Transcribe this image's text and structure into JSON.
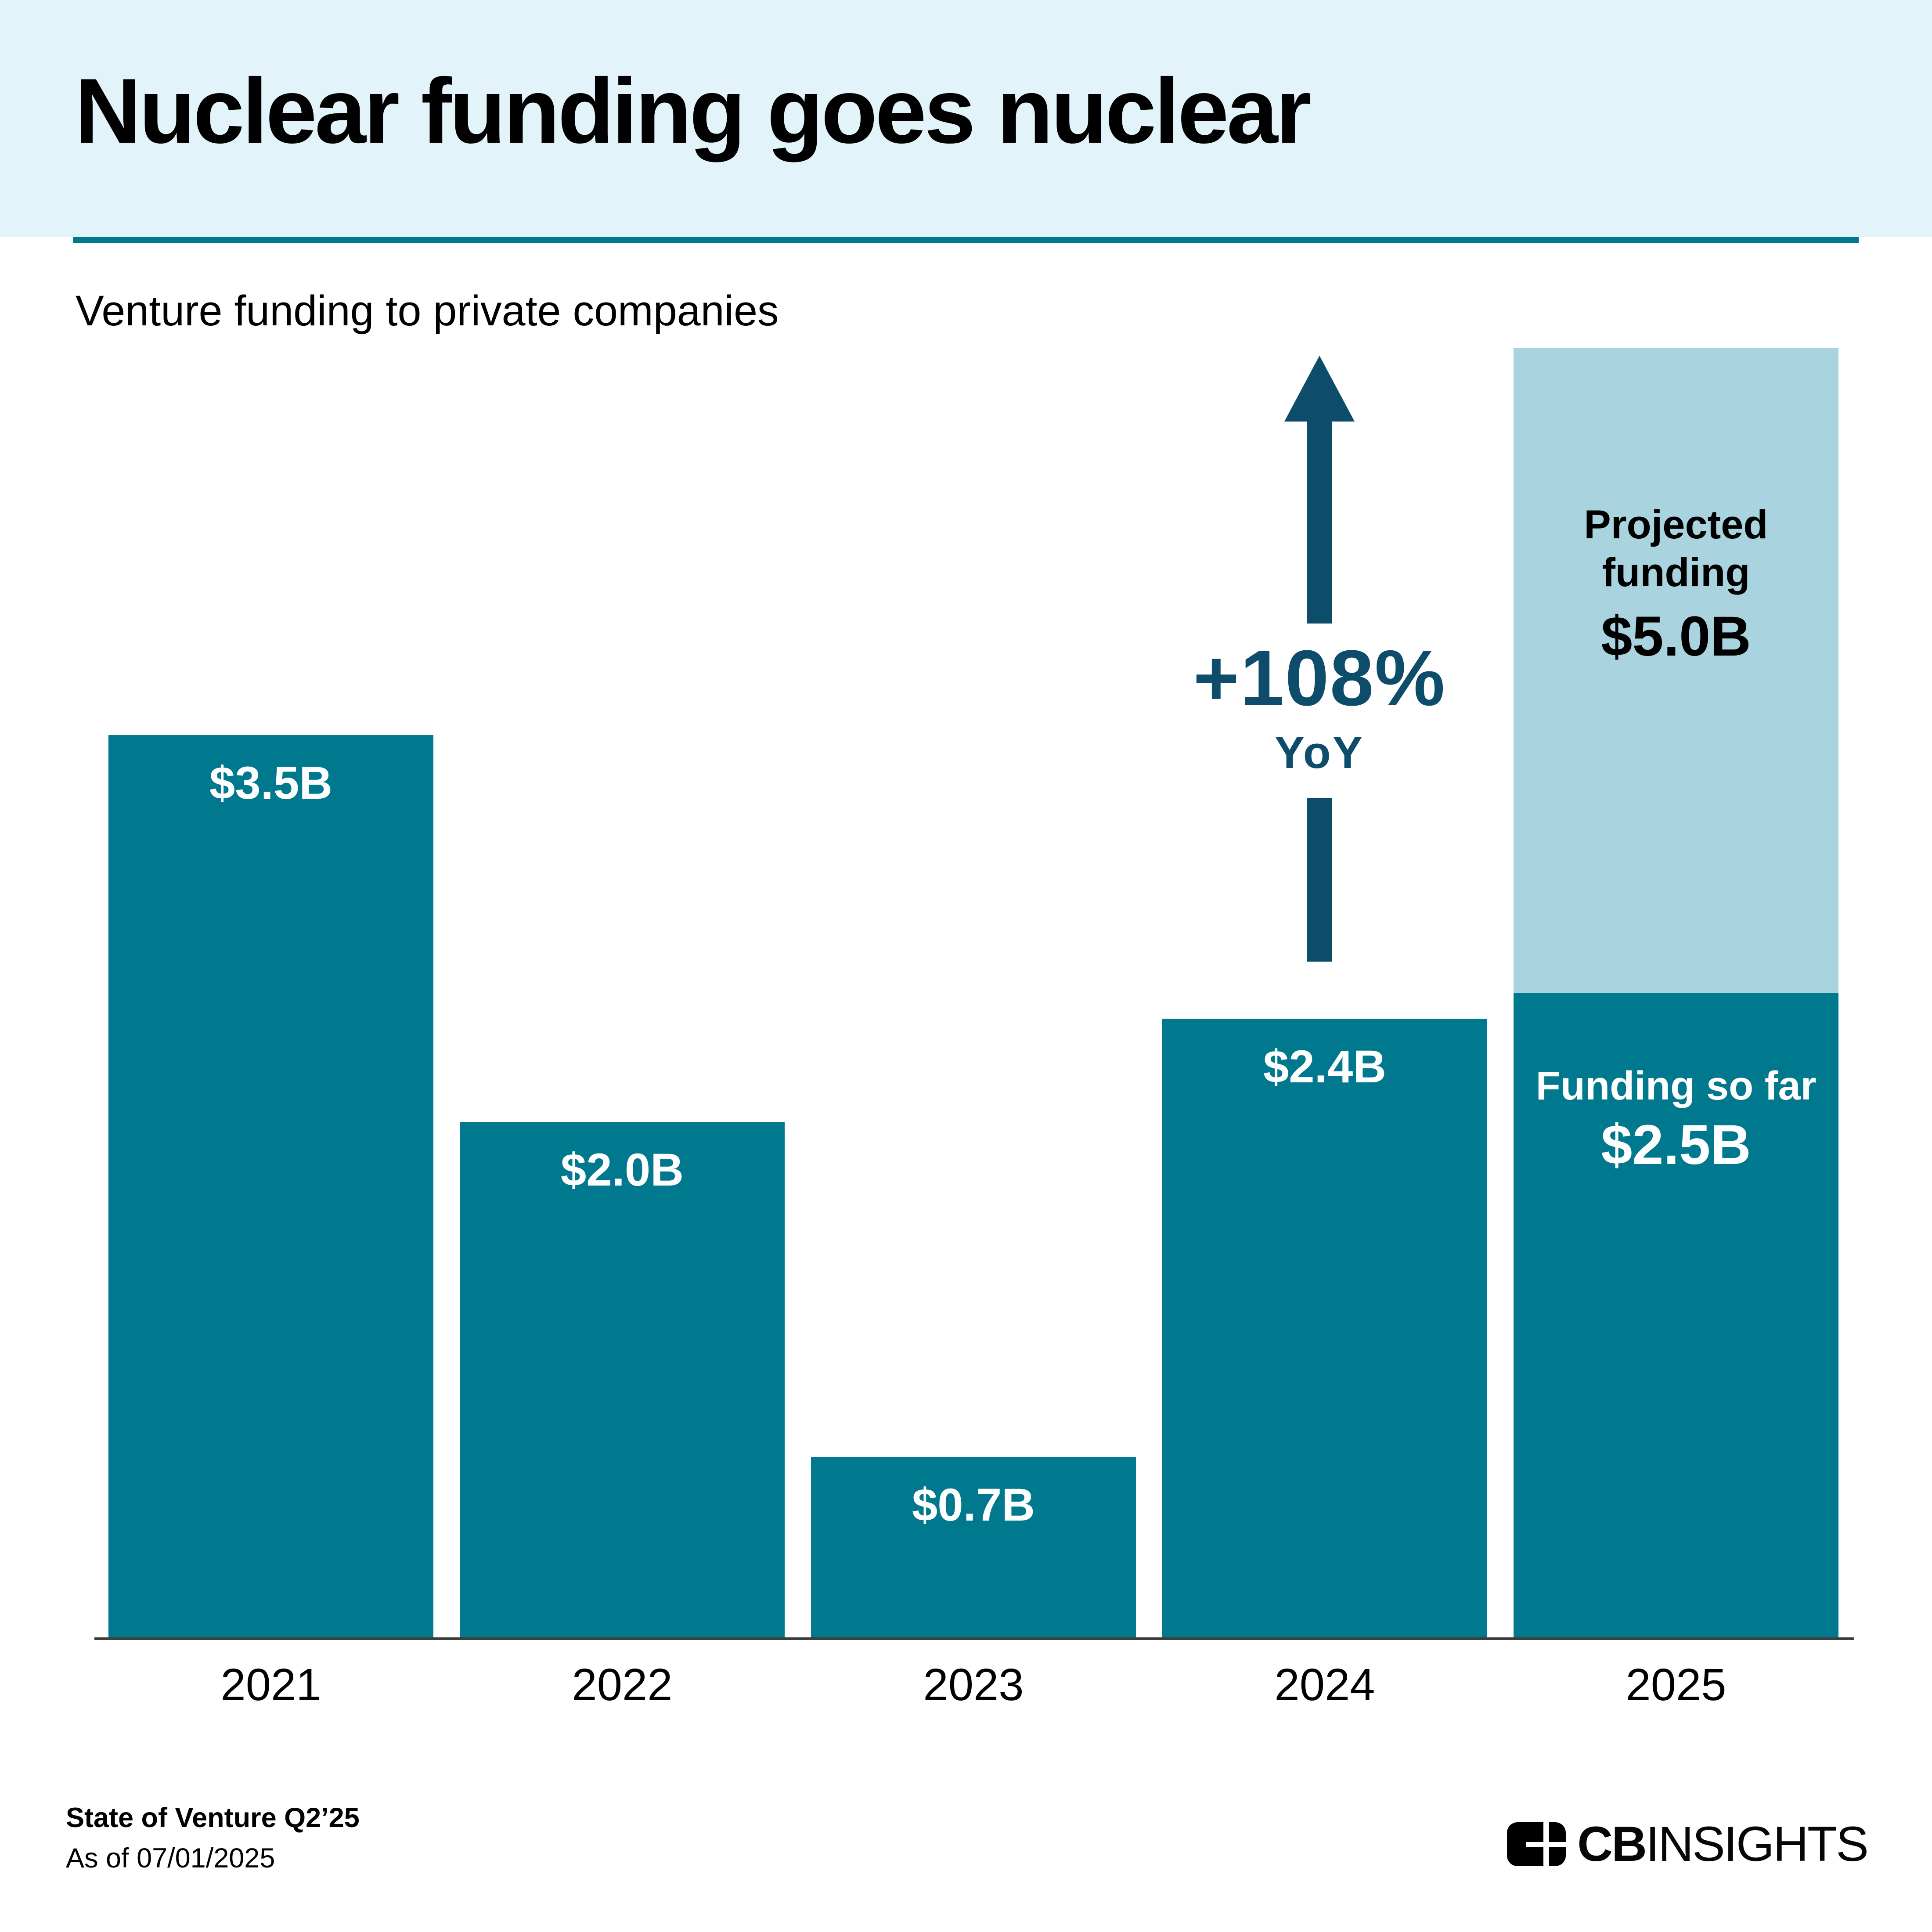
{
  "header": {
    "title": "Nuclear funding goes nuclear"
  },
  "subtitle": "Venture funding to private companies",
  "annotation": {
    "pct": "+108%",
    "period": "YoY"
  },
  "chart_data": {
    "type": "bar",
    "title": "Nuclear funding goes nuclear",
    "subtitle": "Venture funding to private companies",
    "unit": "USD billions",
    "categories": [
      "2021",
      "2022",
      "2023",
      "2024",
      "2025"
    ],
    "values": [
      3.5,
      2.0,
      0.7,
      2.4,
      2.5
    ],
    "value_labels": [
      "$3.5B",
      "$2.0B",
      "$0.7B",
      "$2.4B"
    ],
    "stacked_2025": {
      "so_far_title": "Funding so far",
      "so_far_label": "$2.5B",
      "so_far_value": 2.5,
      "projected_title_line1": "Projected",
      "projected_title_line2": "funding",
      "projected_label": "$5.0B",
      "projected_total_value": 5.0
    },
    "yoy_change_pct": 108,
    "ylim": [
      0,
      5.3
    ],
    "grid": false,
    "legend": false,
    "bar_color": "#00798E",
    "projected_color": "#A9D3DE"
  },
  "footer": {
    "source_line": "State of Venture Q2’25",
    "as_of_line": "As of 07/01/2025"
  },
  "brand": {
    "cb": "CB",
    "insights": "INSIGHTS"
  },
  "colors": {
    "bar_teal": "#00798E",
    "projected_light": "#A9D3DE",
    "navy": "#0E4C6B",
    "header_band": "#E2F4F9",
    "axis": "#3E3E3E"
  }
}
